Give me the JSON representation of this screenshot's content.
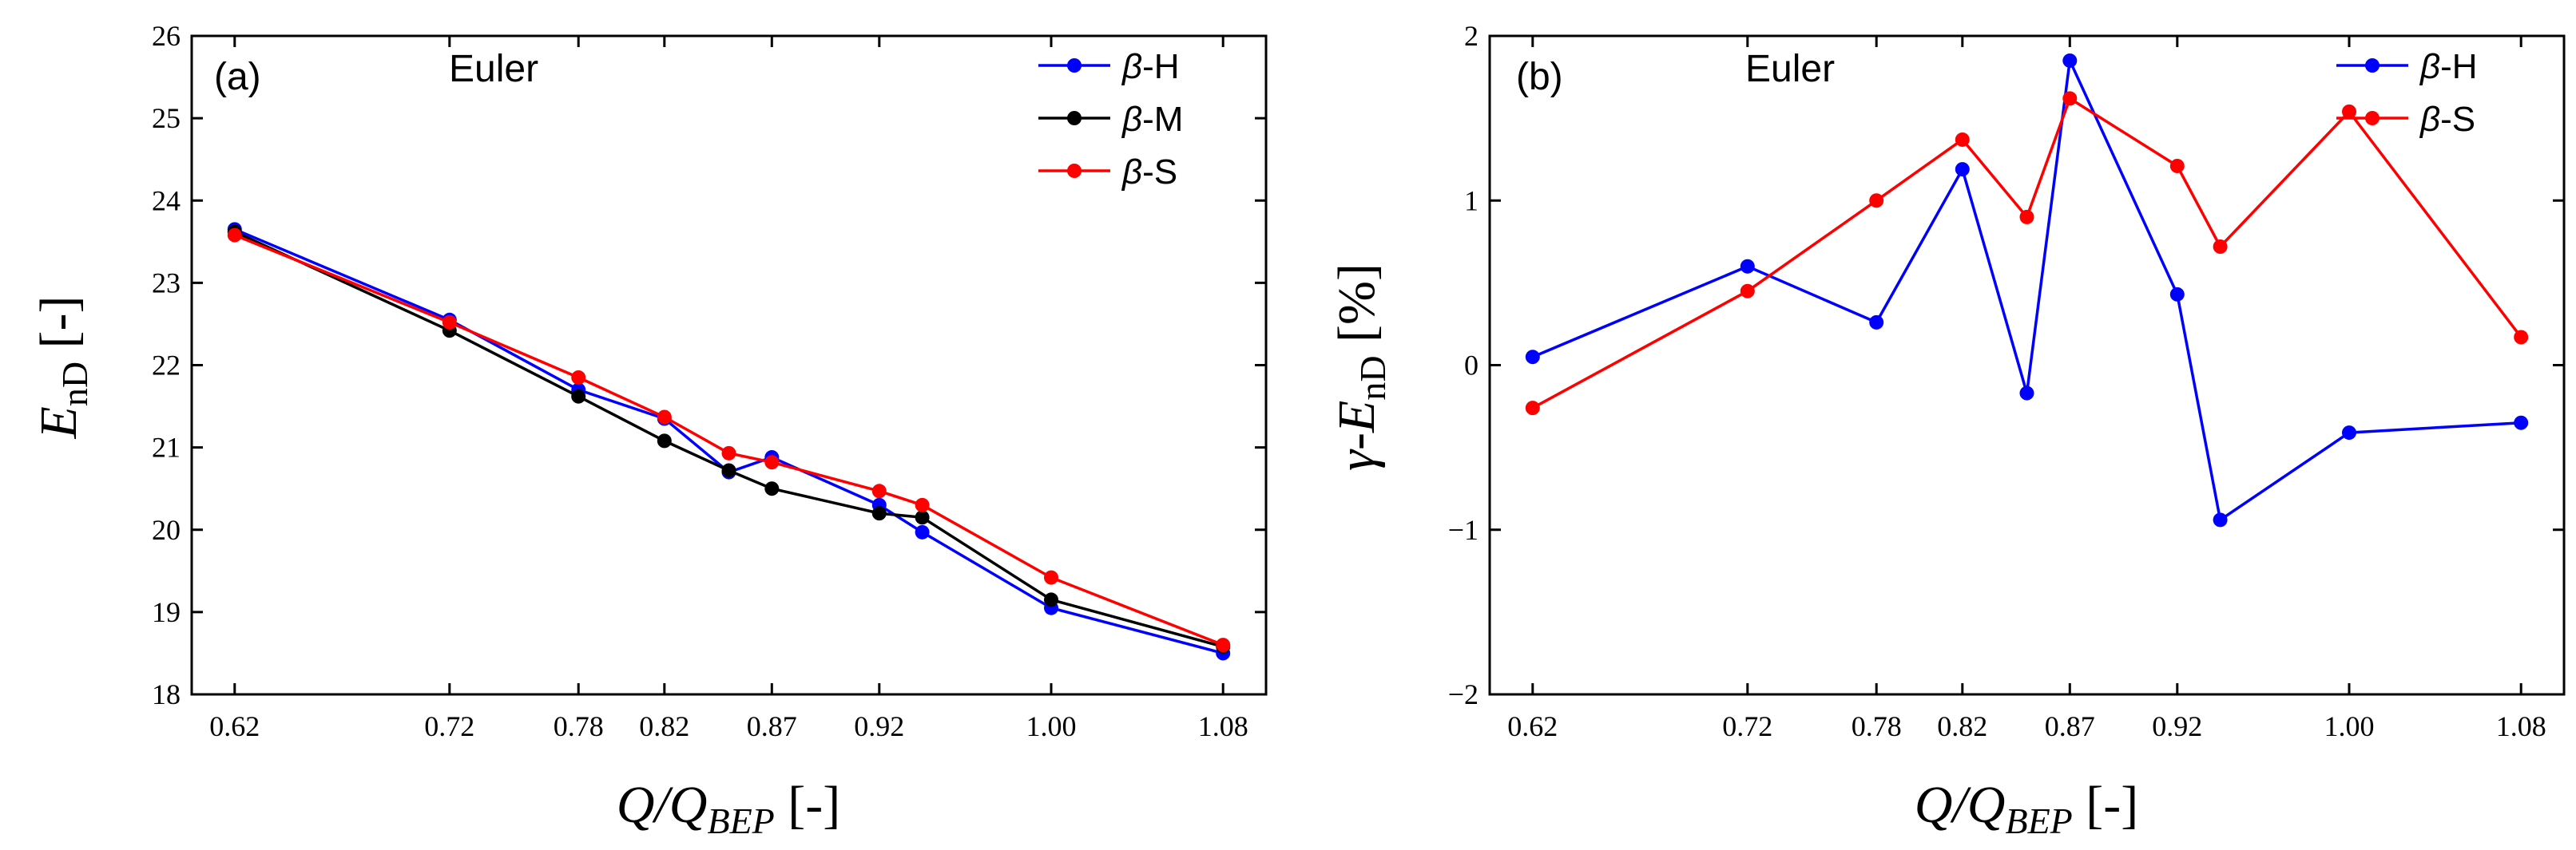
{
  "chart_data": [
    {
      "type": "line",
      "panel_label": "(a)",
      "model_label": "Euler",
      "xlabel": {
        "main": "Q/Q",
        "sub": "BEP",
        "unit": " [-]"
      },
      "ylabel": {
        "main": "E",
        "sub": "nD",
        "unit": " [-]"
      },
      "xlim": [
        0.6,
        1.1
      ],
      "ylim": [
        18,
        26
      ],
      "x_ticks": [
        0.62,
        0.72,
        0.78,
        0.82,
        0.87,
        0.92,
        1.0,
        1.08
      ],
      "x_tick_labels": [
        "0.62",
        "0.72",
        "0.78",
        "0.82",
        "0.87",
        "0.92",
        "1.00",
        "1.08"
      ],
      "y_ticks": [
        18,
        19,
        20,
        21,
        22,
        23,
        24,
        25,
        26
      ],
      "y_tick_labels": [
        "18",
        "19",
        "20",
        "21",
        "22",
        "23",
        "24",
        "25",
        "26"
      ],
      "legend_position": "top-right",
      "x": [
        0.62,
        0.72,
        0.78,
        0.82,
        0.85,
        0.87,
        0.92,
        0.94,
        1.0,
        1.08
      ],
      "series": [
        {
          "name": "β-H",
          "color": "#0000ff",
          "values": [
            23.65,
            22.55,
            21.7,
            21.35,
            20.7,
            20.88,
            20.3,
            19.97,
            19.05,
            18.5
          ]
        },
        {
          "name": "β-M",
          "color": "#000000",
          "values": [
            23.62,
            22.42,
            21.62,
            21.08,
            20.72,
            20.5,
            20.2,
            20.15,
            19.15,
            18.58
          ]
        },
        {
          "name": "β-S",
          "color": "#ff0000",
          "values": [
            23.58,
            22.52,
            21.85,
            21.37,
            20.93,
            20.82,
            20.47,
            20.3,
            19.42,
            18.6
          ]
        }
      ]
    },
    {
      "type": "line",
      "panel_label": "(b)",
      "model_label": "Euler",
      "xlabel": {
        "main": "Q/Q",
        "sub": "BEP",
        "unit": " [-]"
      },
      "ylabel": {
        "main": "γ-E",
        "sub": "nD",
        "unit": " [%]"
      },
      "xlim": [
        0.6,
        1.1
      ],
      "ylim": [
        -2,
        2
      ],
      "x_ticks": [
        0.62,
        0.72,
        0.78,
        0.82,
        0.87,
        0.92,
        1.0,
        1.08
      ],
      "x_tick_labels": [
        "0.62",
        "0.72",
        "0.78",
        "0.82",
        "0.87",
        "0.92",
        "1.00",
        "1.08"
      ],
      "y_ticks": [
        -2,
        -1,
        0,
        1,
        2
      ],
      "y_tick_labels": [
        "−2",
        "−1",
        "0",
        "1",
        "2"
      ],
      "legend_position": "top-right",
      "x": [
        0.62,
        0.72,
        0.78,
        0.82,
        0.85,
        0.87,
        0.92,
        0.94,
        1.0,
        1.08
      ],
      "series": [
        {
          "name": "β-H",
          "color": "#0000ff",
          "values": [
            0.05,
            0.6,
            0.26,
            1.19,
            -0.17,
            1.85,
            0.43,
            -0.94,
            -0.41,
            -0.35
          ]
        },
        {
          "name": "β-S",
          "color": "#ff0000",
          "values": [
            -0.26,
            0.45,
            1.0,
            1.37,
            0.9,
            1.62,
            1.21,
            0.72,
            1.54,
            0.17
          ]
        }
      ]
    }
  ]
}
